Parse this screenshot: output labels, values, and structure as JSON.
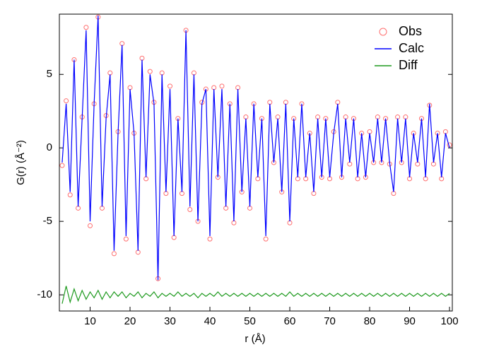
{
  "chart_data": {
    "type": "line",
    "x_label": "r (Å)",
    "y_label": "G(r) (Å⁻²)",
    "x": [
      3,
      4,
      5,
      6,
      7,
      8,
      9,
      10,
      11,
      12,
      13,
      14,
      15,
      16,
      17,
      18,
      19,
      20,
      21,
      22,
      23,
      24,
      25,
      26,
      27,
      28,
      29,
      30,
      31,
      32,
      33,
      34,
      35,
      36,
      37,
      38,
      39,
      40,
      41,
      42,
      43,
      44,
      45,
      46,
      47,
      48,
      49,
      50,
      51,
      52,
      53,
      54,
      55,
      56,
      57,
      58,
      59,
      60,
      61,
      62,
      63,
      64,
      65,
      66,
      67,
      68,
      69,
      70,
      71,
      72,
      73,
      74,
      75,
      76,
      77,
      78,
      79,
      80,
      81,
      82,
      83,
      84,
      85,
      86,
      87,
      88,
      89,
      90,
      91,
      92,
      93,
      94,
      95,
      96,
      97,
      98,
      99,
      100
    ],
    "series": [
      {
        "name": "Obs",
        "color": "#ff6f6f",
        "style": "markers",
        "values": [
          -1.2,
          3.2,
          -3.2,
          6,
          -4.1,
          2.1,
          8.2,
          -5.3,
          3,
          8.9,
          -4.1,
          2.2,
          5.1,
          -7.2,
          1.1,
          7.1,
          -6.2,
          4.1,
          1,
          -7.1,
          6.1,
          -2.1,
          5.2,
          3.1,
          -8.9,
          5.1,
          -3.1,
          4.2,
          -6.1,
          2,
          -3.1,
          8,
          -4.2,
          5.1,
          -5,
          3.1,
          4,
          -6.2,
          4.1,
          -2,
          4.2,
          -4.1,
          3,
          -5.1,
          4.1,
          -3,
          2.1,
          -4.1,
          3,
          -2.1,
          2,
          -6.2,
          3.1,
          -1,
          2.1,
          -3,
          3.1,
          -5.1,
          2,
          -2.1,
          3,
          -2.1,
          1,
          -3.1,
          2.1,
          -2,
          2,
          -2.1,
          1.1,
          3.1,
          -2,
          2.1,
          -1.1,
          2,
          -2.1,
          1,
          -2,
          1.1,
          -1,
          2.1,
          -1,
          2,
          -1.1,
          -3.1,
          2.1,
          -1,
          2.1,
          -2.1,
          1,
          -1.1,
          2,
          -2.1,
          2.9,
          -1.1,
          1,
          -2.1,
          1.1,
          0.2
        ]
      },
      {
        "name": "Calc",
        "color": "#0000ff",
        "style": "line",
        "values": [
          -1,
          3,
          -3,
          6,
          -4,
          2,
          8,
          -5,
          3,
          9,
          -4,
          2,
          5,
          -7,
          1,
          7,
          -6,
          4,
          1,
          -7,
          6,
          -2,
          5,
          3,
          -9,
          5,
          -3,
          4,
          -6,
          2,
          -3,
          8,
          -4,
          5,
          -5,
          3,
          4,
          -6,
          4,
          -2,
          4,
          -4,
          3,
          -5,
          4,
          -3,
          2,
          -4,
          3,
          -2,
          2,
          -6,
          3,
          -1,
          2,
          -3,
          3,
          -5,
          2,
          -2,
          3,
          -2,
          1,
          -3,
          2,
          -2,
          2,
          -2,
          1,
          3,
          -2,
          2,
          -1,
          2,
          -2,
          1,
          -2,
          1,
          -1,
          2,
          -1,
          2,
          -1,
          -3,
          2,
          -1,
          2,
          -2,
          1,
          -1,
          2,
          -2,
          3,
          -1,
          1,
          -2,
          1,
          0
        ]
      },
      {
        "name": "Diff",
        "color": "#1e9a1e",
        "style": "line",
        "values": [
          -10.6,
          -9.4,
          -10.5,
          -9.6,
          -10.4,
          -9.7,
          -10.3,
          -9.8,
          -10.2,
          -9.7,
          -10.3,
          -9.8,
          -10.2,
          -9.8,
          -10.1,
          -9.8,
          -10.2,
          -9.9,
          -10.1,
          -9.8,
          -10.2,
          -9.9,
          -10.1,
          -9.8,
          -10.2,
          -9.9,
          -10.1,
          -9.9,
          -10.1,
          -9.8,
          -10.1,
          -9.9,
          -10.1,
          -9.9,
          -10.2,
          -9.9,
          -10.1,
          -9.9,
          -10.1,
          -9.8,
          -10.1,
          -9.9,
          -10.1,
          -9.9,
          -10.1,
          -9.9,
          -10.1,
          -9.9,
          -10.1,
          -9.9,
          -10.1,
          -9.9,
          -10.1,
          -9.9,
          -10.1,
          -9.9,
          -10.1,
          -9.8,
          -10.1,
          -9.9,
          -10.1,
          -9.9,
          -10.1,
          -9.9,
          -10.1,
          -9.9,
          -10.1,
          -9.9,
          -10.1,
          -9.9,
          -10.1,
          -9.9,
          -10.1,
          -9.9,
          -10.1,
          -9.9,
          -10.1,
          -9.9,
          -10.1,
          -9.9,
          -10.1,
          -9.9,
          -10.1,
          -9.9,
          -10.1,
          -9.9,
          -10.1,
          -9.9,
          -10.1,
          -9.9,
          -10.1,
          -9.9,
          -10.1,
          -9.9,
          -10.1,
          -9.9,
          -10.1,
          -9.9
        ]
      }
    ],
    "xlim": [
      2.3,
      100.7
    ],
    "xticks": [
      10,
      20,
      30,
      40,
      50,
      60,
      70,
      80,
      90,
      100
    ],
    "ylim": [
      -11.1,
      9.1
    ],
    "yticks": [
      5,
      0,
      -5,
      -10
    ],
    "legend": "upper right",
    "grid": false
  }
}
